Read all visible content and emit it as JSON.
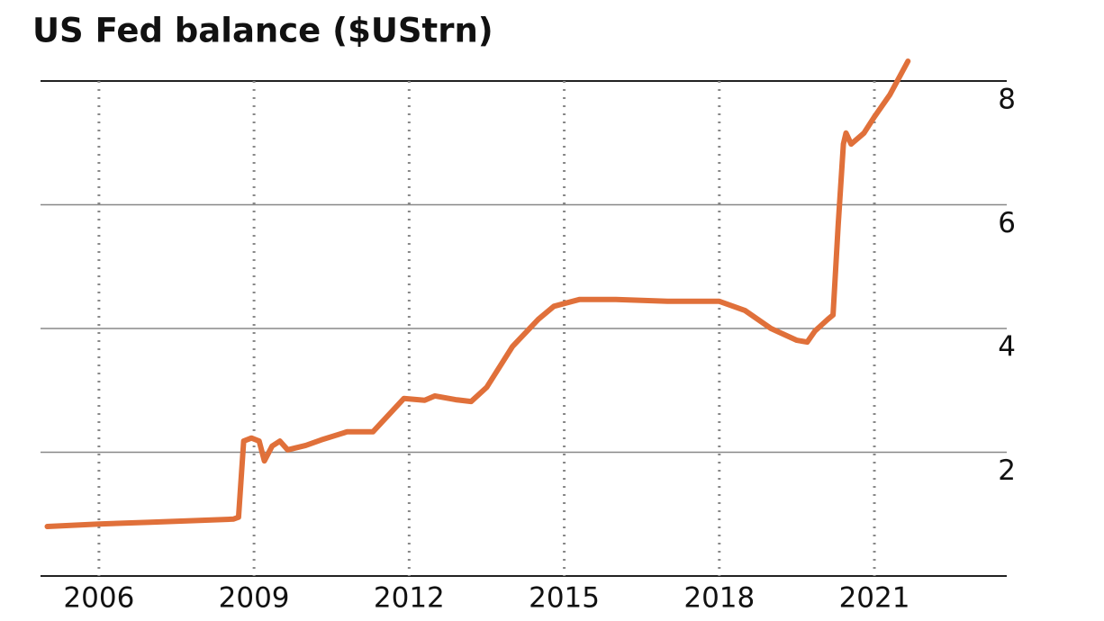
{
  "chart_data": {
    "type": "line",
    "title": "US Fed balance ($UStrn)",
    "x": [
      2005.0,
      2006.0,
      2007.0,
      2008.0,
      2008.6,
      2008.7,
      2008.8,
      2008.95,
      2009.1,
      2009.2,
      2009.35,
      2009.5,
      2009.65,
      2010.0,
      2010.3,
      2010.8,
      2011.3,
      2011.7,
      2011.9,
      2012.3,
      2012.5,
      2012.9,
      2013.2,
      2013.5,
      2014.0,
      2014.5,
      2014.8,
      2015.3,
      2016.0,
      2017.0,
      2018.0,
      2018.5,
      2019.0,
      2019.5,
      2019.7,
      2019.85,
      2020.1,
      2020.2,
      2020.3,
      2020.4,
      2020.45,
      2020.55,
      2020.8,
      2021.0,
      2021.3,
      2021.65
    ],
    "values": [
      0.8,
      0.84,
      0.87,
      0.9,
      0.92,
      0.95,
      2.18,
      2.23,
      2.18,
      1.86,
      2.1,
      2.18,
      2.04,
      2.11,
      2.2,
      2.33,
      2.33,
      2.69,
      2.87,
      2.84,
      2.91,
      2.85,
      2.82,
      3.05,
      3.71,
      4.15,
      4.36,
      4.47,
      4.47,
      4.44,
      4.44,
      4.29,
      4.0,
      3.81,
      3.78,
      3.96,
      4.15,
      4.22,
      5.67,
      6.98,
      7.16,
      6.98,
      7.16,
      7.42,
      7.78,
      8.32
    ],
    "color": "#e0703a",
    "xlim": [
      2004.87,
      2023.56
    ],
    "xticks": [
      2006,
      2009,
      2012,
      2015,
      2018,
      2021
    ],
    "ylim": [
      0,
      8.4
    ],
    "yticks": [
      2,
      4,
      6,
      8
    ],
    "grid": true
  }
}
